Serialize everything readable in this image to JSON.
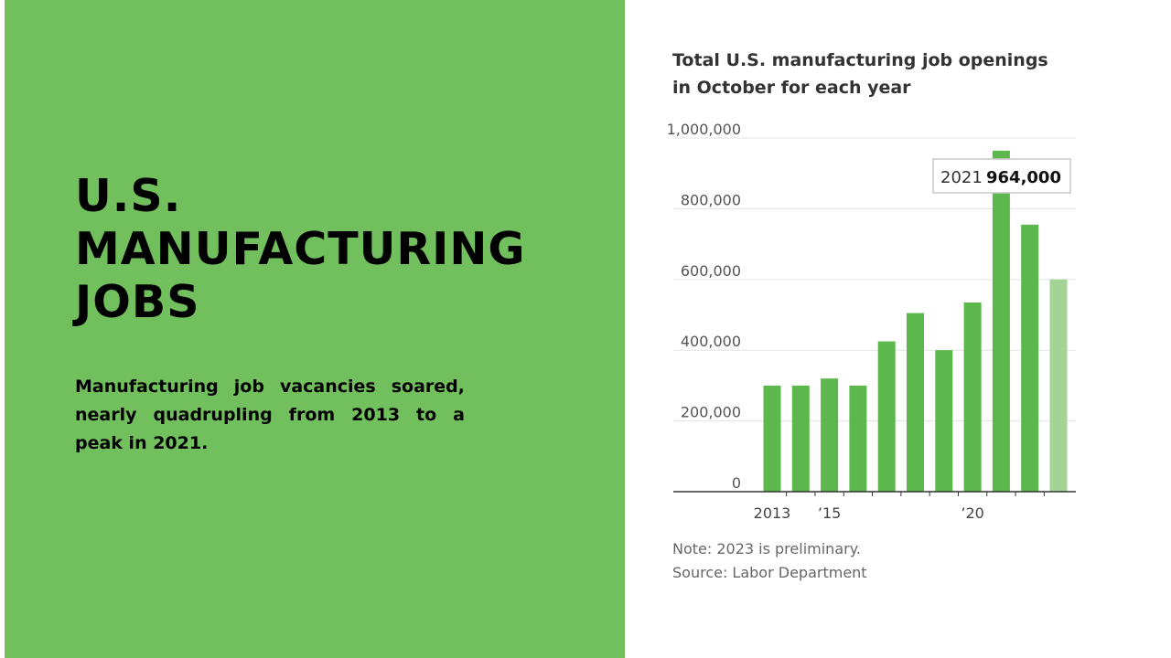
{
  "headline": {
    "line1": "U.S.",
    "line2": "MANUFACTURING",
    "line3": "JOBS"
  },
  "blurb": "Manufacturing job vacancies soared, nearly quadrupling from 2013 to a peak in 2021.",
  "colors": {
    "panel": "#72bf5d",
    "bar": "#5cb84d",
    "bar_preliminary": "#a3d495",
    "bar_highlight": "#5cb84d"
  },
  "chart_data": {
    "type": "bar",
    "title": "Total U.S. manufacturing job openings in October for each year",
    "categories": [
      "2013",
      "2014",
      "2015",
      "2016",
      "2017",
      "2018",
      "2019",
      "2020",
      "2021",
      "2022",
      "2023"
    ],
    "values": [
      300000,
      300000,
      320000,
      300000,
      425000,
      505000,
      400000,
      535000,
      964000,
      755000,
      600000
    ],
    "preliminary": [
      "2023"
    ],
    "ylim": [
      0,
      1000000
    ],
    "yticks": [
      {
        "value": 0,
        "label": "0"
      },
      {
        "value": 200000,
        "label": "200,000"
      },
      {
        "value": 400000,
        "label": "400,000"
      },
      {
        "value": 600000,
        "label": "600,000"
      },
      {
        "value": 800000,
        "label": "800,000"
      },
      {
        "value": 1000000,
        "label": "1,000,000"
      }
    ],
    "xticks": [
      {
        "category": "2013",
        "label": "2013"
      },
      {
        "category": "2015",
        "label": "’15"
      },
      {
        "category": "2020",
        "label": "’20"
      }
    ],
    "tooltip": {
      "year": "2021",
      "value": "964,000"
    },
    "grid": true,
    "xlabel": "",
    "ylabel": ""
  },
  "note": "Note: 2023 is preliminary.",
  "source": "Source: Labor Department"
}
